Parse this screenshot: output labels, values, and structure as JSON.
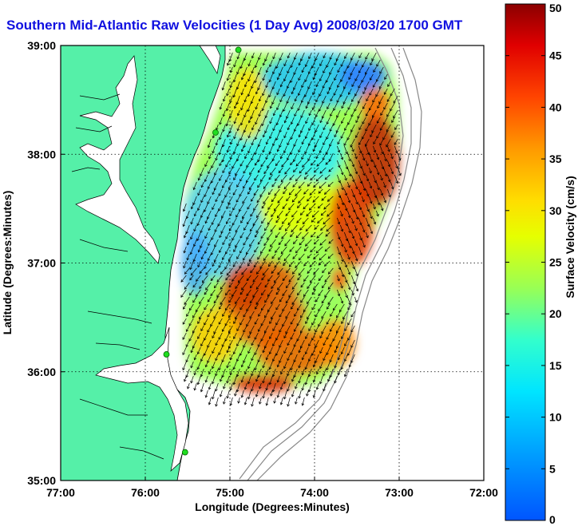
{
  "title": "Southern Mid-Atlantic Raw Velocities (1 Day Avg) 2008/03/20 1700 GMT",
  "xlabel": "Longitude (Degrees:Minutes)",
  "ylabel": "Latitude (Degrees:Minutes)",
  "x_ticks": [
    "77:00",
    "76:00",
    "75:00",
    "74:00",
    "73:00",
    "72:00"
  ],
  "y_ticks": [
    "39:00",
    "38:00",
    "37:00",
    "36:00",
    "35:00"
  ],
  "colorbar": {
    "label": "Surface Velocity (cm/s)",
    "ticks": [
      "0",
      "5",
      "10",
      "15",
      "20",
      "25",
      "30",
      "35",
      "40",
      "45",
      "50"
    ],
    "min": 0,
    "max": 50
  },
  "colors": {
    "land": "#55f0a8",
    "water": "#ffffff",
    "title": "#1010e0",
    "station_marker": "#20dd20"
  },
  "chart_data": {
    "type": "heatmap",
    "x_range": [
      -77,
      -72
    ],
    "y_range": [
      35,
      39
    ],
    "grid": true,
    "vector_field": true,
    "value_range_cm_s": [
      0,
      50
    ]
  }
}
